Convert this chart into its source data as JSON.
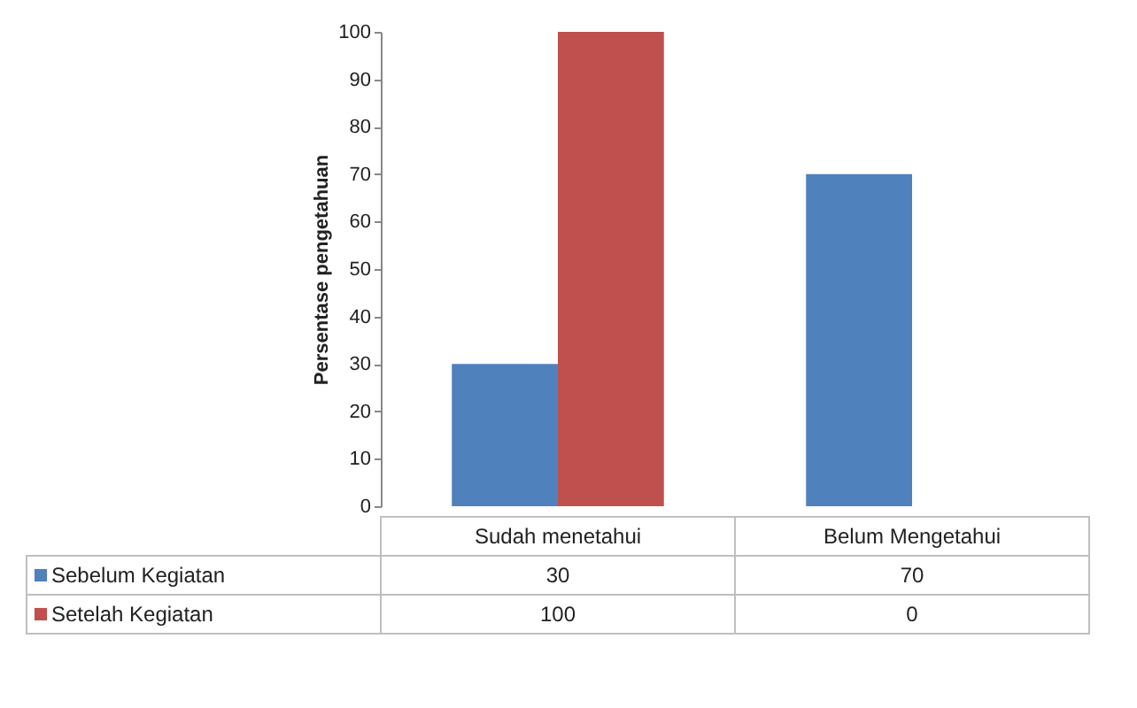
{
  "chart_data": {
    "type": "bar",
    "ylabel": "Persentase pengetahuan",
    "categories": [
      "Sudah menetahui",
      "Belum Mengetahui"
    ],
    "series": [
      {
        "name": "Sebelum Kegiatan",
        "color": "#4f81bd",
        "values": [
          30,
          70
        ]
      },
      {
        "name": "Setelah Kegiatan",
        "color": "#c0504d",
        "values": [
          100,
          0
        ]
      }
    ],
    "ylim": [
      0,
      100
    ],
    "yticks": [
      0,
      10,
      20,
      30,
      40,
      50,
      60,
      70,
      80,
      90,
      100
    ],
    "data_labels": true,
    "legend": "bottom",
    "grid": false
  }
}
